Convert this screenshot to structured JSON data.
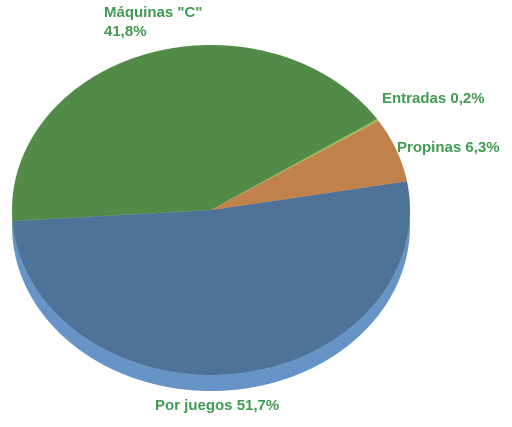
{
  "chart_data": {
    "type": "pie",
    "categories": [
      "Por juegos",
      "Máquinas \"C\"",
      "Entradas",
      "Propinas"
    ],
    "values": [
      51.7,
      41.8,
      0.2,
      6.3
    ],
    "value_labels": [
      "51,7%",
      "41,8%",
      "0,2%",
      "6,3%"
    ],
    "colors": [
      "#4f7299",
      "#528b48",
      "#9bbb59",
      "#c0814a"
    ]
  }
}
